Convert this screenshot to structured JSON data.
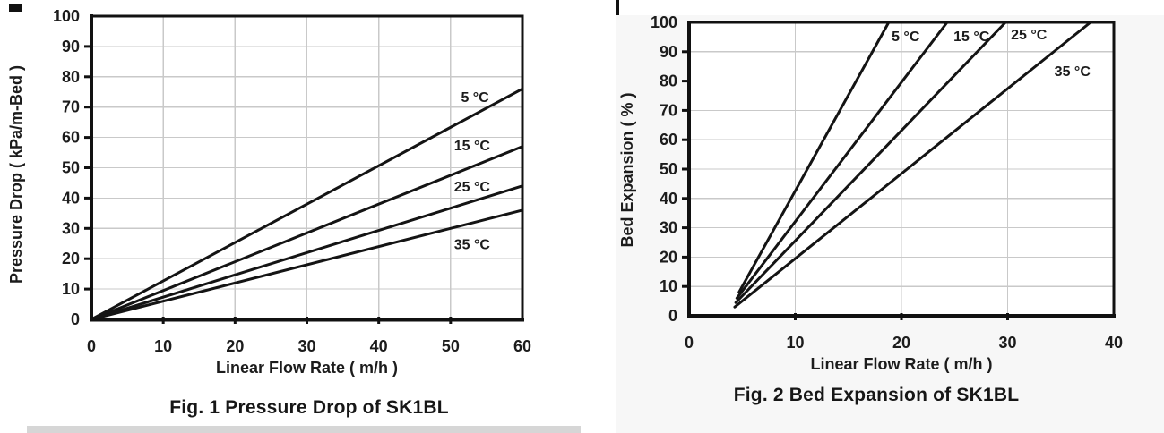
{
  "colors": {
    "line": "#141414",
    "grid": "#c9c9c9",
    "text": "#1c1c1c",
    "border": "#111111",
    "plot_background": "#ffffff",
    "right_panel_bg": "#f7f7f7",
    "scan_strip": "#d6d6d6"
  },
  "chart_data": [
    {
      "type": "line",
      "caption": "Fig. 1 Pressure Drop of SK1BL",
      "xlabel": "Linear Flow Rate ( m/h )",
      "ylabel": "Pressure Drop ( kPa/m-Bed )",
      "xlim": [
        0,
        60
      ],
      "ylim": [
        0,
        100
      ],
      "xticks": [
        0,
        10,
        20,
        30,
        40,
        50,
        60
      ],
      "yticks": [
        0,
        10,
        20,
        30,
        40,
        50,
        60,
        70,
        80,
        90,
        100
      ],
      "grid": true,
      "legend_position": "inline-labels",
      "series": [
        {
          "name": "5 °C",
          "x": [
            0,
            60
          ],
          "y": [
            0,
            76
          ],
          "label_at": [
            53.4,
            73.5
          ]
        },
        {
          "name": "15 °C",
          "x": [
            0,
            60
          ],
          "y": [
            0,
            57
          ],
          "label_at": [
            53.0,
            57.5
          ]
        },
        {
          "name": "25 °C",
          "x": [
            0,
            60
          ],
          "y": [
            0,
            44
          ],
          "label_at": [
            53.0,
            44.0
          ]
        },
        {
          "name": "35 °C",
          "x": [
            0,
            60
          ],
          "y": [
            0,
            36
          ],
          "label_at": [
            53.0,
            25.0
          ]
        }
      ]
    },
    {
      "type": "line",
      "caption": "Fig. 2 Bed Expansion of SK1BL",
      "xlabel": "Linear Flow Rate ( m/h )",
      "ylabel": "Bed Expansion ( % )",
      "xlim": [
        0,
        40
      ],
      "ylim": [
        0,
        100
      ],
      "xticks": [
        0,
        10,
        20,
        30,
        40
      ],
      "yticks": [
        0,
        10,
        20,
        30,
        40,
        50,
        60,
        70,
        80,
        90,
        100
      ],
      "grid": true,
      "legend_position": "inline-labels",
      "series": [
        {
          "name": "5 °C",
          "x": [
            4.7,
            18.8
          ],
          "y": [
            8.0,
            100
          ],
          "label_at": [
            20.4,
            95.4
          ]
        },
        {
          "name": "15 °C",
          "x": [
            4.5,
            24.3
          ],
          "y": [
            6.0,
            100
          ],
          "label_at": [
            26.6,
            95.4
          ]
        },
        {
          "name": "25 °C",
          "x": [
            4.4,
            29.8
          ],
          "y": [
            4.5,
            100
          ],
          "label_at": [
            32.0,
            96.0
          ]
        },
        {
          "name": "35 °C",
          "x": [
            4.3,
            37.8
          ],
          "y": [
            3.0,
            100
          ],
          "label_at": [
            36.1,
            83.5
          ]
        }
      ]
    }
  ]
}
